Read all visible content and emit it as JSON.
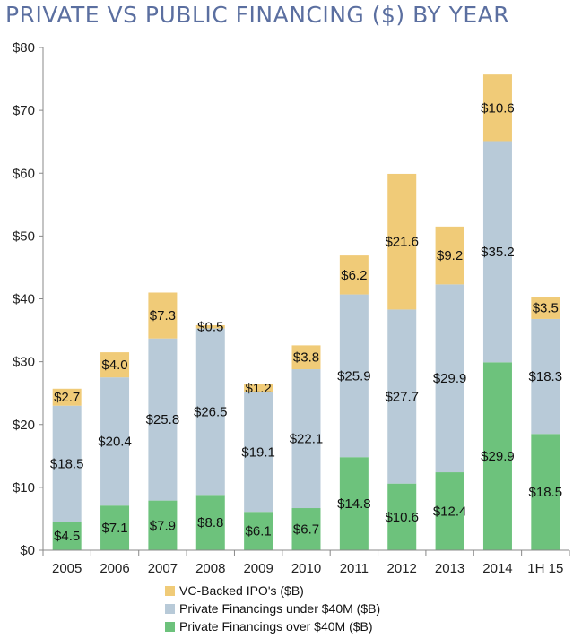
{
  "title": "PRIVATE VS PUBLIC FINANCING ($) BY YEAR",
  "colors": {
    "ipo": "#f0cb78",
    "under": "#b8cad8",
    "over": "#6dc27c",
    "axis": "#888888",
    "title": "#5b6fa0"
  },
  "chart_data": {
    "type": "bar",
    "stacked": true,
    "title": "PRIVATE VS PUBLIC FINANCING ($) BY YEAR",
    "categories": [
      "2005",
      "2006",
      "2007",
      "2008",
      "2009",
      "2010",
      "2011",
      "2012",
      "2013",
      "2014",
      "1H 15"
    ],
    "ylim": [
      0,
      80
    ],
    "y_ticks": [
      0,
      10,
      20,
      30,
      40,
      50,
      60,
      70,
      80
    ],
    "y_tick_labels": [
      "$0",
      "$10",
      "$20",
      "$30",
      "$40",
      "$50",
      "$60",
      "$70",
      "$80"
    ],
    "grid": false,
    "legend_position": "bottom",
    "series": [
      {
        "name": "Private Financings over $40M ($B)",
        "color": "#6dc27c",
        "values": [
          4.5,
          7.1,
          7.9,
          8.8,
          6.1,
          6.7,
          14.8,
          10.6,
          12.4,
          29.9,
          18.5
        ],
        "labels": [
          "$4.5",
          "$7.1",
          "$7.9",
          "$8.8",
          "$6.1",
          "$6.7",
          "$14.8",
          "$10.6",
          "$12.4",
          "$29.9",
          "$18.5"
        ]
      },
      {
        "name": "Private Financings under $40M ($B)",
        "color": "#b8cad8",
        "values": [
          18.5,
          20.4,
          25.8,
          26.5,
          19.1,
          22.1,
          25.9,
          27.7,
          29.9,
          35.2,
          18.3
        ],
        "labels": [
          "$18.5",
          "$20.4",
          "$25.8",
          "$26.5",
          "$19.1",
          "$22.1",
          "$25.9",
          "$27.7",
          "$29.9",
          "$35.2",
          "$18.3"
        ]
      },
      {
        "name": "VC-Backed IPO's ($B)",
        "color": "#f0cb78",
        "values": [
          2.7,
          4.0,
          7.3,
          0.5,
          1.2,
          3.8,
          6.2,
          21.6,
          9.2,
          10.6,
          3.5
        ],
        "labels": [
          "$2.7",
          "$4.0",
          "$7.3",
          "$0.5",
          "$1.2",
          "$3.8",
          "$6.2",
          "$21.6",
          "$9.2",
          "$10.6",
          "$3.5"
        ]
      }
    ],
    "legend": [
      "VC-Backed IPO's ($B)",
      "Private Financings under $40M ($B)",
      "Private Financings over $40M ($B)"
    ]
  }
}
